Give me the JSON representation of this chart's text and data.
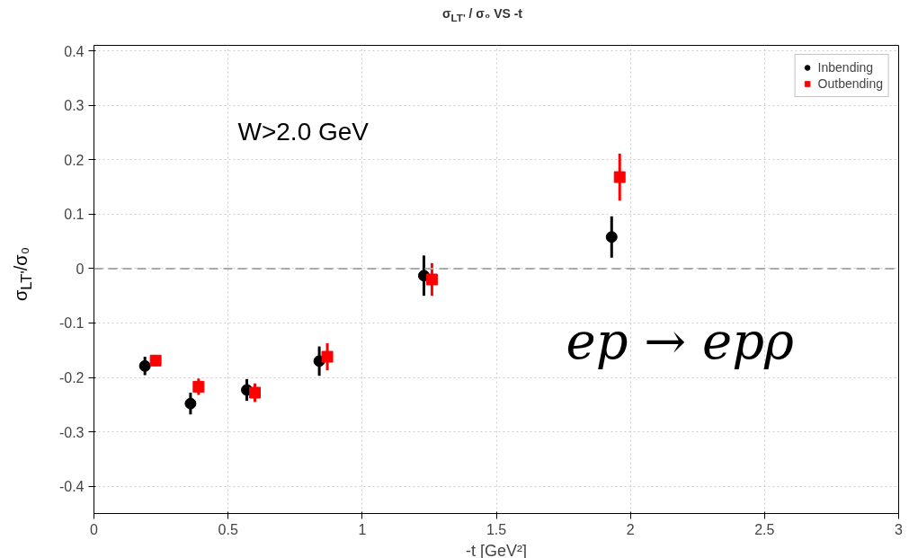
{
  "chart_data": {
    "type": "scatter",
    "title": "σ$_{LT'}$ /  σ₀ VS -t",
    "xlabel": "-t [GeV²]",
    "ylabel": "σ$_{LT'}$/σ₀",
    "annotations": [
      "W>2.0 GeV",
      "ep → epρ"
    ],
    "xlim": [
      0,
      3
    ],
    "ylim": [
      -0.45,
      0.41
    ],
    "xticks": [
      0,
      0.5,
      1,
      1.5,
      2,
      2.5,
      3
    ],
    "yticks": [
      -0.4,
      -0.3,
      -0.2,
      -0.1,
      0,
      0.1,
      0.2,
      0.3,
      0.4
    ],
    "grid": true,
    "legend": "top right",
    "ref_lines": [
      {
        "axis": "y",
        "value": 0,
        "color": "#aaaaaa",
        "line_style": "dashed"
      }
    ],
    "series": [
      {
        "name": "Inbending",
        "color": "#000000",
        "marker": "circle",
        "x": [
          0.19,
          0.36,
          0.57,
          0.84,
          1.23,
          1.93
        ],
        "values": [
          -0.179,
          -0.248,
          -0.223,
          -0.17,
          -0.013,
          0.058
        ],
        "errors": [
          0.017,
          0.02,
          0.02,
          0.027,
          0.037,
          0.038
        ]
      },
      {
        "name": "Outbending",
        "color": "#ff0000",
        "marker": "square",
        "x": [
          0.23,
          0.39,
          0.6,
          0.87,
          1.26,
          1.96
        ],
        "values": [
          -0.169,
          -0.217,
          -0.228,
          -0.162,
          -0.02,
          0.168
        ],
        "errors": [
          0.01,
          0.015,
          0.017,
          0.025,
          0.03,
          0.043
        ]
      }
    ]
  }
}
